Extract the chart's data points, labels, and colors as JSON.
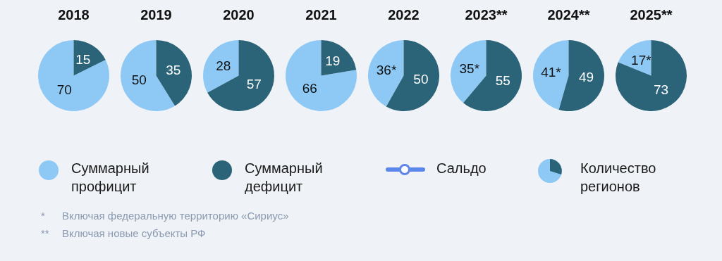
{
  "chart_data": [
    {
      "type": "pie",
      "title": "2018",
      "categories": [
        "Суммарный профицит",
        "Суммарный дефицит"
      ],
      "values": [
        70,
        15
      ],
      "colors": [
        "#8ec9f5",
        "#2b6478"
      ],
      "data_labels": true,
      "legend": "bottom"
    },
    {
      "type": "pie",
      "title": "2019",
      "categories": [
        null,
        null
      ],
      "values": [
        50,
        35
      ],
      "colors": [
        "#8ec9f5",
        "#2b6478"
      ],
      "data_labels": true
    },
    {
      "type": "pie",
      "title": "2020",
      "categories": [
        null,
        null
      ],
      "values": [
        28,
        57
      ],
      "colors": [
        "#8ec9f5",
        "#2b6478"
      ],
      "data_labels": true
    },
    {
      "type": "pie",
      "title": "2021",
      "categories": [
        null,
        null
      ],
      "values": [
        66,
        19
      ],
      "colors": [
        "#8ec9f5",
        "#2b6478"
      ],
      "data_labels": true
    },
    {
      "type": "pie",
      "title": "2022",
      "categories": [
        null,
        null
      ],
      "values": [
        36,
        50
      ],
      "colors": [
        "#8ec9f5",
        "#2b6478"
      ],
      "value_labels": [
        "36*",
        "50"
      ]
    },
    {
      "type": "pie",
      "title": "2023**",
      "categories": [
        null,
        null
      ],
      "values": [
        35,
        55
      ],
      "colors": [
        "#8ec9f5",
        "#2b6478"
      ],
      "value_labels": [
        "35*",
        "55"
      ]
    },
    {
      "type": "pie",
      "title": "2024**",
      "categories": [
        null,
        null
      ],
      "values": [
        41,
        49
      ],
      "colors": [
        "#8ec9f5",
        "#2b6478"
      ],
      "value_labels": [
        "41*",
        "49"
      ]
    },
    {
      "type": "pie",
      "title": "2025**",
      "categories": [
        null,
        null
      ],
      "values": [
        17,
        73
      ],
      "colors": [
        "#8ec9f5",
        "#2b6478"
      ],
      "value_labels": [
        "17*",
        "73"
      ]
    },
    {
      "type": "other",
      "annotations": [
        "Сальдо",
        "Количество регионов",
        "*",
        "Включая федеральную территорию «Сириус»",
        "**",
        "Включая новые субъекты РФ"
      ]
    }
  ]
}
